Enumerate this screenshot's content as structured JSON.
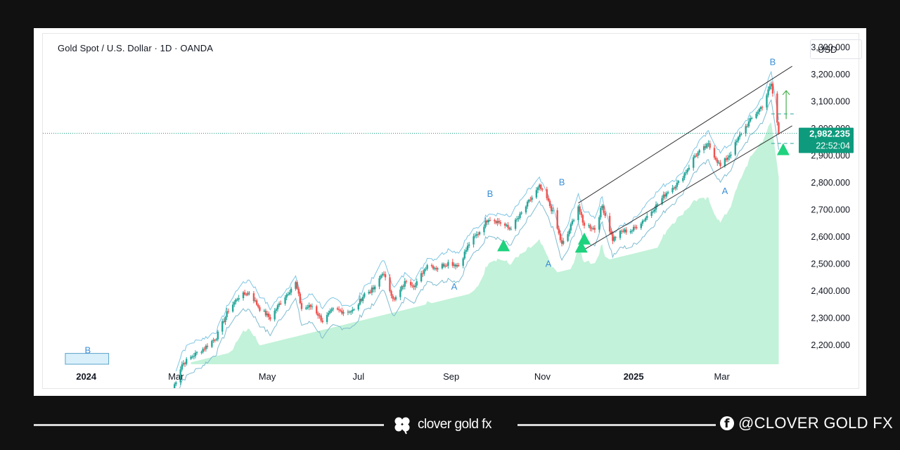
{
  "header": {
    "title": "Gold Spot / U.S. Dollar · 1D · OANDA",
    "currency": "USD"
  },
  "price_tag": {
    "price": "2,982.235",
    "countdown": "22:52:04",
    "color": "#0e9b7d"
  },
  "chart_data": {
    "type": "candlestick",
    "title": "Gold Spot / U.S. Dollar · 1D · OANDA",
    "y_axis": {
      "ticks": [
        "3,300.000",
        "3,200.000",
        "3,100.000",
        "3,000.000",
        "2,900.000",
        "2,800.000",
        "2,700.000",
        "2,600.000",
        "2,500.000",
        "2,400.000",
        "2,300.000",
        "2,200.000"
      ],
      "tick_values": [
        3300,
        3200,
        3100,
        3000,
        2900,
        2800,
        2700,
        2600,
        2500,
        2400,
        2300,
        2200
      ],
      "range": [
        2130,
        3350
      ],
      "position": "right"
    },
    "x_axis": {
      "ticks": [
        "2024",
        "Mar",
        "May",
        "Jul",
        "Sep",
        "Nov",
        "2025",
        "Mar"
      ],
      "bold_ticks": [
        "2024",
        "2025"
      ],
      "tick_dates": [
        "2024-01-01",
        "2024-03-01",
        "2024-05-01",
        "2024-07-01",
        "2024-09-01",
        "2024-11-01",
        "2025-01-01",
        "2025-03-01"
      ],
      "range": [
        "2023-12-03",
        "2025-04-20"
      ]
    },
    "current_price": 2982.235,
    "price_path": [
      [
        "2024-02-28",
        2040
      ],
      [
        "2024-03-05",
        2130
      ],
      [
        "2024-03-12",
        2160
      ],
      [
        "2024-03-20",
        2190
      ],
      [
        "2024-03-28",
        2230
      ],
      [
        "2024-04-05",
        2330
      ],
      [
        "2024-04-12",
        2380
      ],
      [
        "2024-04-19",
        2395
      ],
      [
        "2024-04-26",
        2335
      ],
      [
        "2024-05-03",
        2300
      ],
      [
        "2024-05-10",
        2360
      ],
      [
        "2024-05-17",
        2410
      ],
      [
        "2024-05-20",
        2430
      ],
      [
        "2024-05-24",
        2335
      ],
      [
        "2024-05-31",
        2345
      ],
      [
        "2024-06-07",
        2290
      ],
      [
        "2024-06-14",
        2330
      ],
      [
        "2024-06-21",
        2325
      ],
      [
        "2024-06-28",
        2328
      ],
      [
        "2024-07-05",
        2390
      ],
      [
        "2024-07-12",
        2410
      ],
      [
        "2024-07-17",
        2470
      ],
      [
        "2024-07-25",
        2365
      ],
      [
        "2024-08-02",
        2440
      ],
      [
        "2024-08-08",
        2420
      ],
      [
        "2024-08-16",
        2500
      ],
      [
        "2024-08-22",
        2485
      ],
      [
        "2024-08-30",
        2505
      ],
      [
        "2024-09-06",
        2495
      ],
      [
        "2024-09-13",
        2575
      ],
      [
        "2024-09-20",
        2620
      ],
      [
        "2024-09-26",
        2670
      ],
      [
        "2024-10-03",
        2655
      ],
      [
        "2024-10-10",
        2630
      ],
      [
        "2024-10-16",
        2670
      ],
      [
        "2024-10-23",
        2730
      ],
      [
        "2024-10-30",
        2785
      ],
      [
        "2024-11-04",
        2740
      ],
      [
        "2024-11-08",
        2690
      ],
      [
        "2024-11-14",
        2570
      ],
      [
        "2024-11-18",
        2610
      ],
      [
        "2024-11-25",
        2715
      ],
      [
        "2024-11-28",
        2650
      ],
      [
        "2024-12-06",
        2630
      ],
      [
        "2024-12-11",
        2715
      ],
      [
        "2024-12-18",
        2590
      ],
      [
        "2024-12-24",
        2620
      ],
      [
        "2024-12-31",
        2625
      ],
      [
        "2025-01-08",
        2665
      ],
      [
        "2025-01-16",
        2715
      ],
      [
        "2025-01-24",
        2770
      ],
      [
        "2025-01-31",
        2800
      ],
      [
        "2025-02-07",
        2860
      ],
      [
        "2025-02-11",
        2900
      ],
      [
        "2025-02-20",
        2940
      ],
      [
        "2025-02-28",
        2860
      ],
      [
        "2025-03-07",
        2910
      ],
      [
        "2025-03-14",
        2985
      ],
      [
        "2025-03-20",
        3030
      ],
      [
        "2025-03-28",
        3085
      ],
      [
        "2025-04-03",
        3165
      ],
      [
        "2025-04-07",
        3020
      ],
      [
        "2025-04-08",
        2982
      ]
    ],
    "overlays": {
      "ascending_channel": {
        "upper": [
          [
            "2024-11-25",
            2725
          ],
          [
            "2025-04-17",
            3230
          ]
        ],
        "lower": [
          [
            "2024-11-28",
            2550
          ],
          [
            "2025-04-17",
            3010
          ]
        ]
      },
      "wave_labels": [
        {
          "text": "B",
          "date": "2024-01-02",
          "price": 2170
        },
        {
          "text": "B",
          "date": "2024-09-27",
          "price": 2748
        },
        {
          "text": "A",
          "date": "2024-09-03",
          "price": 2405
        },
        {
          "text": "B",
          "date": "2024-11-14",
          "price": 2790
        },
        {
          "text": "A",
          "date": "2024-11-05",
          "price": 2490
        },
        {
          "text": "A",
          "date": "2025-03-03",
          "price": 2758
        },
        {
          "text": "B",
          "date": "2025-04-04",
          "price": 3235
        }
      ],
      "buy_signals": [
        {
          "date": "2024-10-06",
          "price": 2560
        },
        {
          "date": "2024-11-29",
          "price": 2585
        },
        {
          "date": "2024-11-27",
          "price": 2555
        },
        {
          "date": "2025-04-11",
          "price": 2915
        }
      ],
      "target_zone": {
        "top": 3054,
        "bottom": 2945
      },
      "up_arrow": {
        "date": "2025-04-13",
        "from": 3035,
        "to": 3140
      }
    }
  },
  "footer": {
    "brand": "clover gold fx",
    "handle": "@CLOVER GOLD FX"
  },
  "colors": {
    "bull": "#26a69a",
    "bear": "#ef5350",
    "cloud": "#b7f0d2",
    "channel": "#333333",
    "signal": "#1ed27e",
    "wave_label": "#3a8fd6"
  }
}
